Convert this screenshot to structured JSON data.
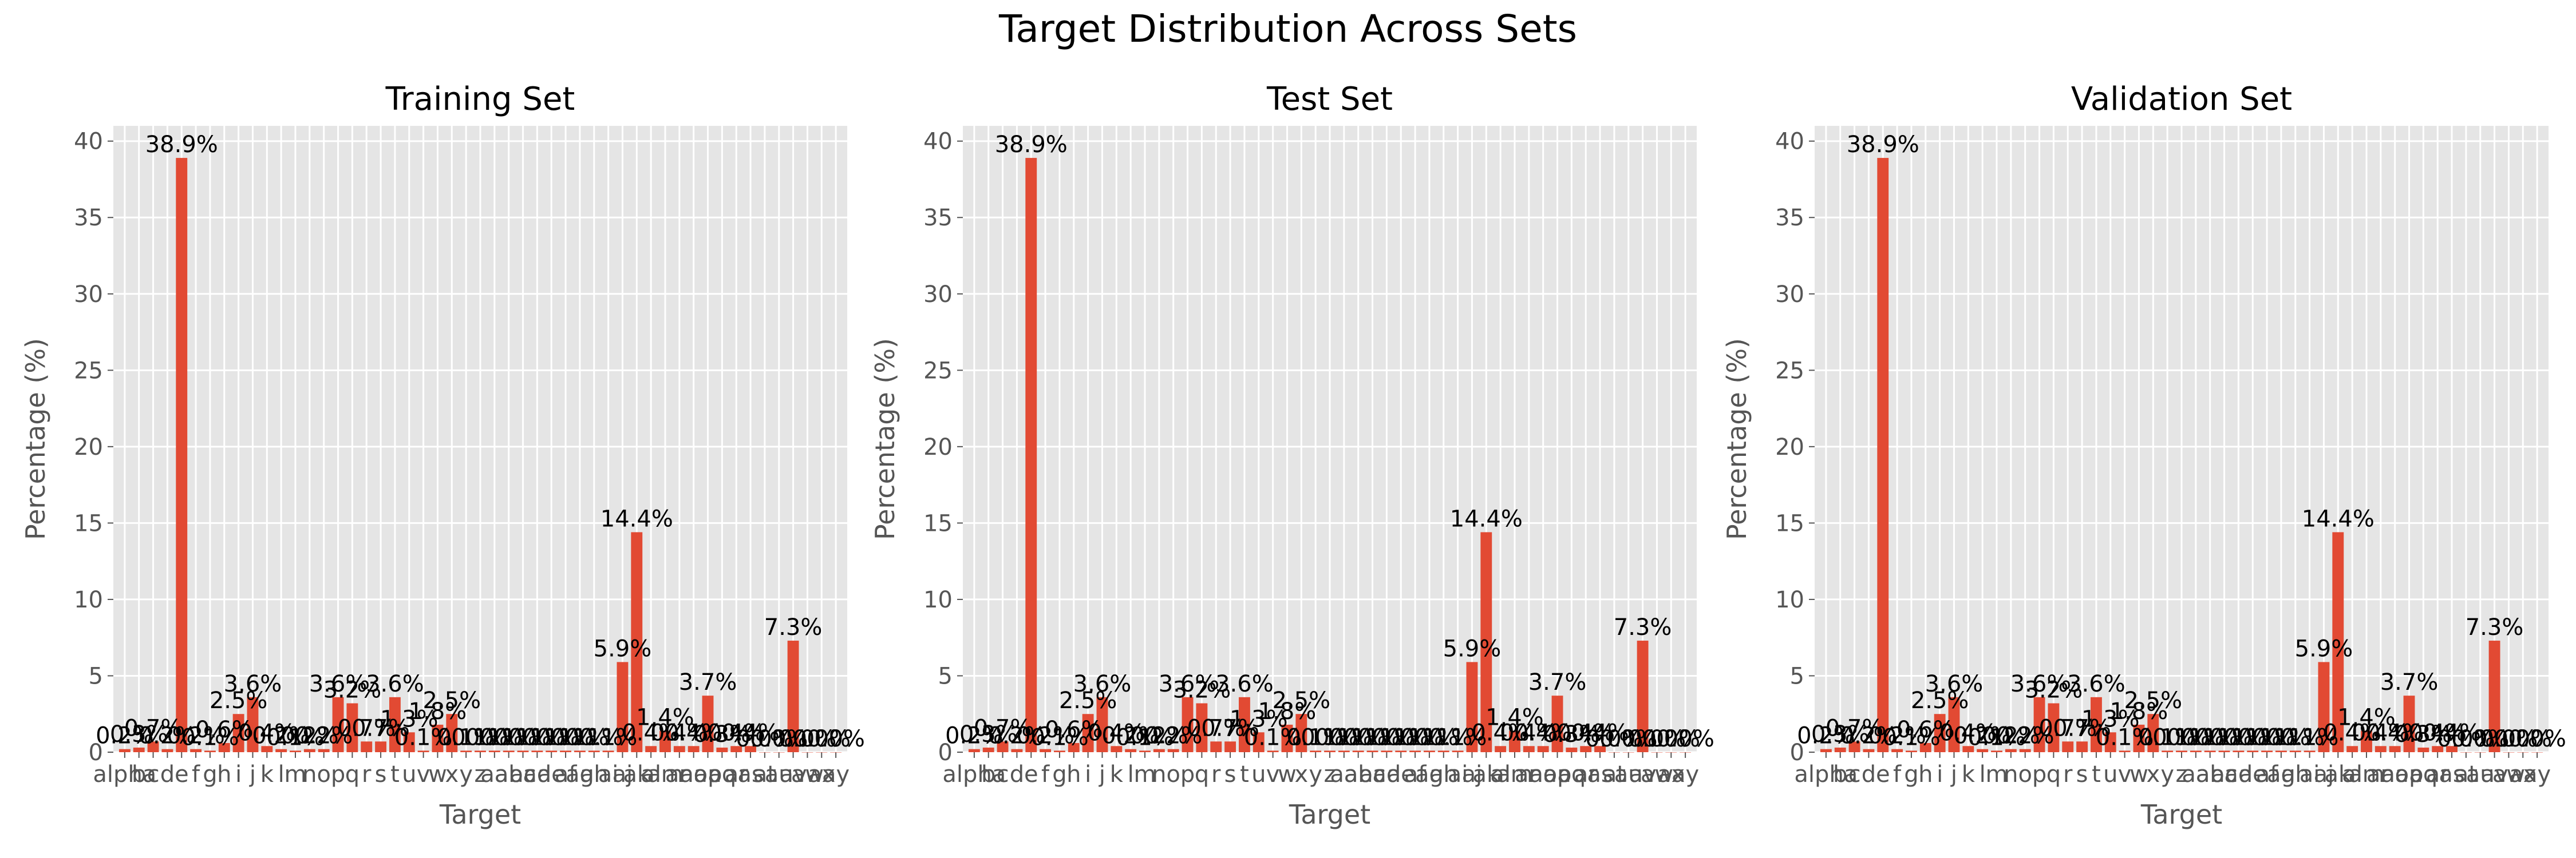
{
  "figure": {
    "title": "Target Distribution Across Sets"
  },
  "style": {
    "panel_bg": "#e5e5e5",
    "grid": "#ffffff",
    "bar": "#e24a33",
    "tick_text": "#555555",
    "label_text": "#555555"
  },
  "chart_data": [
    {
      "type": "bar",
      "title": "Training Set",
      "xlabel": "Target",
      "ylabel": "Percentage (%)",
      "ylim": [
        0,
        41
      ],
      "yticks": [
        0,
        5,
        10,
        15,
        20,
        25,
        30,
        35,
        40
      ],
      "grid": true,
      "categories": [
        "alpha",
        "b",
        "c",
        "d",
        "e",
        "f",
        "g",
        "h",
        "i",
        "j",
        "k",
        "l",
        "m",
        "n",
        "o",
        "p",
        "q",
        "r",
        "s",
        "t",
        "u",
        "v",
        "w",
        "x",
        "y",
        "z",
        "aa",
        "ab",
        "ac",
        "ad",
        "ae",
        "af",
        "ag",
        "ah",
        "ai",
        "aj",
        "ak",
        "al",
        "am",
        "an",
        "ao",
        "ap",
        "aq",
        "ar",
        "as",
        "at",
        "au",
        "av",
        "aw",
        "ax",
        "ay"
      ],
      "values": [
        0.2,
        0.3,
        0.7,
        0.2,
        38.9,
        0.2,
        0.1,
        0.6,
        2.5,
        3.6,
        0.4,
        0.2,
        0.1,
        0.2,
        0.2,
        3.6,
        3.2,
        0.7,
        0.7,
        3.6,
        1.3,
        0.1,
        1.8,
        2.5,
        0.1,
        0.1,
        0.1,
        0.1,
        0.1,
        0.1,
        0.1,
        0.1,
        0.1,
        0.1,
        0.1,
        5.9,
        14.4,
        0.4,
        1.4,
        0.4,
        0.4,
        3.7,
        0.3,
        0.4,
        0.4,
        0.0,
        0.0,
        7.3,
        0.0,
        0.0,
        0.0
      ],
      "data_labels": [
        "0.2%",
        "0.3%",
        "0.7%",
        "0.2%",
        "38.9%",
        "0.2%",
        "0.1%",
        "0.6%",
        "2.5%",
        "3.6%",
        "0.4%",
        "0.2%",
        "0.1%",
        "0.2%",
        "0.2%",
        "3.6%",
        "3.2%",
        "0.7%",
        "0.7%",
        "3.6%",
        "1.3%",
        "0.1%",
        "1.8%",
        "2.5%",
        "0.1%",
        "0.1%",
        "0.1%",
        "0.1%",
        "0.1%",
        "0.1%",
        "0.1%",
        "0.1%",
        "0.1%",
        "0.1%",
        "0.1%",
        "5.9%",
        "14.4%",
        "0.4%",
        "1.4%",
        "0.4%",
        "0.4%",
        "3.7%",
        "0.3%",
        "0.4%",
        "0.4%",
        "0.0%",
        "0.0%",
        "7.3%",
        "0.0%",
        "0.0%",
        "0.0%"
      ]
    },
    {
      "type": "bar",
      "title": "Test Set",
      "xlabel": "Target",
      "ylabel": "Percentage (%)",
      "ylim": [
        0,
        41
      ],
      "yticks": [
        0,
        5,
        10,
        15,
        20,
        25,
        30,
        35,
        40
      ],
      "grid": true,
      "categories": [
        "alpha",
        "b",
        "c",
        "d",
        "e",
        "f",
        "g",
        "h",
        "i",
        "j",
        "k",
        "l",
        "m",
        "n",
        "o",
        "p",
        "q",
        "r",
        "s",
        "t",
        "u",
        "v",
        "w",
        "x",
        "y",
        "z",
        "aa",
        "ab",
        "ac",
        "ad",
        "ae",
        "af",
        "ag",
        "ah",
        "ai",
        "aj",
        "ak",
        "al",
        "am",
        "an",
        "ao",
        "ap",
        "aq",
        "ar",
        "as",
        "at",
        "au",
        "av",
        "aw",
        "ax",
        "ay"
      ],
      "values": [
        0.2,
        0.3,
        0.7,
        0.2,
        38.9,
        0.2,
        0.1,
        0.6,
        2.5,
        3.6,
        0.4,
        0.2,
        0.1,
        0.2,
        0.2,
        3.6,
        3.2,
        0.7,
        0.7,
        3.6,
        1.3,
        0.1,
        1.8,
        2.5,
        0.1,
        0.1,
        0.1,
        0.1,
        0.1,
        0.1,
        0.1,
        0.1,
        0.1,
        0.1,
        0.1,
        5.9,
        14.4,
        0.4,
        1.4,
        0.4,
        0.4,
        3.7,
        0.3,
        0.4,
        0.4,
        0.0,
        0.0,
        7.3,
        0.0,
        0.0,
        0.0
      ],
      "data_labels": [
        "0.2%",
        "0.3%",
        "0.7%",
        "0.2%",
        "38.9%",
        "0.2%",
        "0.1%",
        "0.6%",
        "2.5%",
        "3.6%",
        "0.4%",
        "0.2%",
        "0.1%",
        "0.2%",
        "0.2%",
        "3.6%",
        "3.2%",
        "0.7%",
        "0.7%",
        "3.6%",
        "1.3%",
        "0.1%",
        "1.8%",
        "2.5%",
        "0.1%",
        "0.1%",
        "0.1%",
        "0.1%",
        "0.1%",
        "0.1%",
        "0.1%",
        "0.1%",
        "0.1%",
        "0.1%",
        "0.1%",
        "5.9%",
        "14.4%",
        "0.4%",
        "1.4%",
        "0.4%",
        "0.4%",
        "3.7%",
        "0.3%",
        "0.4%",
        "0.4%",
        "0.0%",
        "0.0%",
        "7.3%",
        "0.0%",
        "0.0%",
        "0.0%"
      ]
    },
    {
      "type": "bar",
      "title": "Validation Set",
      "xlabel": "Target",
      "ylabel": "Percentage (%)",
      "ylim": [
        0,
        41
      ],
      "yticks": [
        0,
        5,
        10,
        15,
        20,
        25,
        30,
        35,
        40
      ],
      "grid": true,
      "categories": [
        "alpha",
        "b",
        "c",
        "d",
        "e",
        "f",
        "g",
        "h",
        "i",
        "j",
        "k",
        "l",
        "m",
        "n",
        "o",
        "p",
        "q",
        "r",
        "s",
        "t",
        "u",
        "v",
        "w",
        "x",
        "y",
        "z",
        "aa",
        "ab",
        "ac",
        "ad",
        "ae",
        "af",
        "ag",
        "ah",
        "ai",
        "aj",
        "ak",
        "al",
        "am",
        "an",
        "ao",
        "ap",
        "aq",
        "ar",
        "as",
        "at",
        "au",
        "av",
        "aw",
        "ax",
        "ay"
      ],
      "values": [
        0.2,
        0.3,
        0.7,
        0.2,
        38.9,
        0.2,
        0.1,
        0.6,
        2.5,
        3.6,
        0.4,
        0.2,
        0.1,
        0.2,
        0.2,
        3.6,
        3.2,
        0.7,
        0.7,
        3.6,
        1.3,
        0.1,
        1.8,
        2.5,
        0.1,
        0.1,
        0.1,
        0.1,
        0.1,
        0.1,
        0.1,
        0.1,
        0.1,
        0.1,
        0.1,
        5.9,
        14.4,
        0.4,
        1.4,
        0.4,
        0.4,
        3.7,
        0.3,
        0.4,
        0.4,
        0.0,
        0.0,
        7.3,
        0.0,
        0.0,
        0.0
      ],
      "data_labels": [
        "0.2%",
        "0.3%",
        "0.7%",
        "0.2%",
        "38.9%",
        "0.2%",
        "0.1%",
        "0.6%",
        "2.5%",
        "3.6%",
        "0.4%",
        "0.2%",
        "0.1%",
        "0.2%",
        "0.2%",
        "3.6%",
        "3.2%",
        "0.7%",
        "0.7%",
        "3.6%",
        "1.3%",
        "0.1%",
        "1.8%",
        "2.5%",
        "0.1%",
        "0.1%",
        "0.1%",
        "0.1%",
        "0.1%",
        "0.1%",
        "0.1%",
        "0.1%",
        "0.1%",
        "0.1%",
        "0.1%",
        "5.9%",
        "14.4%",
        "0.4%",
        "1.4%",
        "0.4%",
        "0.4%",
        "3.7%",
        "0.3%",
        "0.4%",
        "0.4%",
        "0.0%",
        "0.0%",
        "7.3%",
        "0.0%",
        "0.0%",
        "0.0%"
      ]
    }
  ]
}
